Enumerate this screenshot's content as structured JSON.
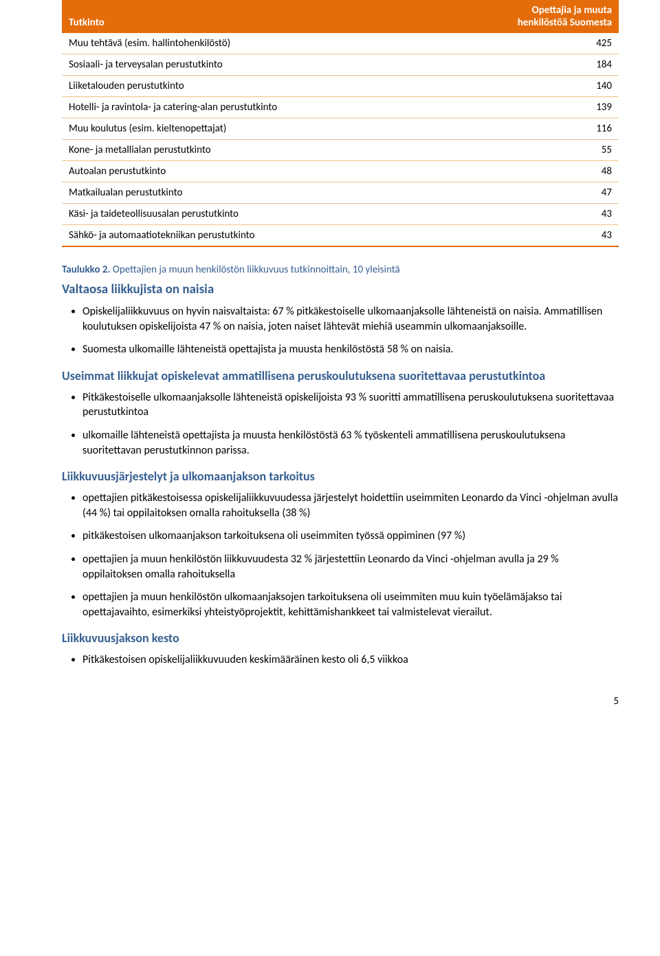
{
  "table": {
    "header": {
      "col1": "Tutkinto",
      "col2_line1": "Opettajia ja muuta",
      "col2_line2": "henkilöstöä Suomesta"
    },
    "rows": [
      {
        "label": "Muu tehtävä (esim. hallintohenkilöstö)",
        "value": "425"
      },
      {
        "label": "Sosiaali- ja terveysalan perustutkinto",
        "value": "184"
      },
      {
        "label": "Liiketalouden perustutkinto",
        "value": "140"
      },
      {
        "label": "Hotelli- ja ravintola- ja catering-alan perustutkinto",
        "value": "139"
      },
      {
        "label": "Muu koulutus (esim. kieltenopettajat)",
        "value": "116"
      },
      {
        "label": "Kone- ja metallialan perustutkinto",
        "value": "55"
      },
      {
        "label": "Autoalan perustutkinto",
        "value": "48"
      },
      {
        "label": "Matkailualan perustutkinto",
        "value": "47"
      },
      {
        "label": "Käsi- ja taideteollisuusalan perustutkinto",
        "value": "43"
      },
      {
        "label": "Sähkö- ja automaatiotekniikan perustutkinto",
        "value": "43"
      }
    ]
  },
  "caption": {
    "bold": "Taulukko 2.",
    "rest": " Opettajien ja muun henkilöstön liikkuvuus tutkinnoittain, 10 yleisintä"
  },
  "sec1": {
    "title": "Valtaosa liikkujista on naisia",
    "bullets": [
      "Opiskelijaliikkuvuus on hyvin naisvaltaista: 67 % pitkäkestoiselle ulkomaanjaksolle lähteneistä on naisia. Ammatillisen koulutuksen opiskelijoista 47 % on naisia, joten naiset lähtevät miehiä useammin ulkomaanjaksoille.",
      "Suomesta ulkomaille lähteneistä opettajista ja muusta henkilöstöstä 58 % on naisia."
    ]
  },
  "sec2": {
    "title": "Useimmat liikkujat opiskelevat ammatillisena peruskoulutuksena suoritettavaa perustutkintoa",
    "bullets": [
      "Pitkäkestoiselle ulkomaanjaksolle lähteneistä opiskelijoista 93 % suoritti ammatillisena peruskoulutuksena suoritettavaa perustutkintoa",
      "ulkomaille lähteneistä opettajista ja muusta henkilöstöstä 63 % työskenteli ammatillisena peruskoulutuksena suoritettavan perustutkinnon parissa."
    ]
  },
  "sec3": {
    "title": "Liikkuvuusjärjestelyt ja ulkomaanjakson tarkoitus",
    "bullets": [
      "opettajien pitkäkestoisessa opiskelijaliikkuvuudessa järjestelyt hoidettiin useimmiten Leonardo da Vinci -ohjelman avulla (44 %) tai oppilaitoksen omalla rahoituksella (38 %)",
      "pitkäkestoisen ulkomaanjakson tarkoituksena oli useimmiten työssä oppiminen (97 %)",
      "opettajien ja muun henkilöstön liikkuvuudesta 32 % järjestettiin Leonardo da Vinci -ohjelman avulla ja 29 % oppilaitoksen omalla rahoituksella",
      "opettajien ja muun henkilöstön ulkomaanjaksojen tarkoituksena oli useimmiten muu kuin työelämäjakso tai opettajavaihto, esimerkiksi yhteistyöprojektit, kehittämishankkeet tai valmistelevat vierailut."
    ]
  },
  "sec4": {
    "title": "Liikkuvuusjakson kesto",
    "bullets": [
      "Pitkäkestoisen opiskelijaliikkuvuuden keskimääräinen kesto oli 6,5 viikkoa"
    ]
  },
  "pageNumber": "5"
}
